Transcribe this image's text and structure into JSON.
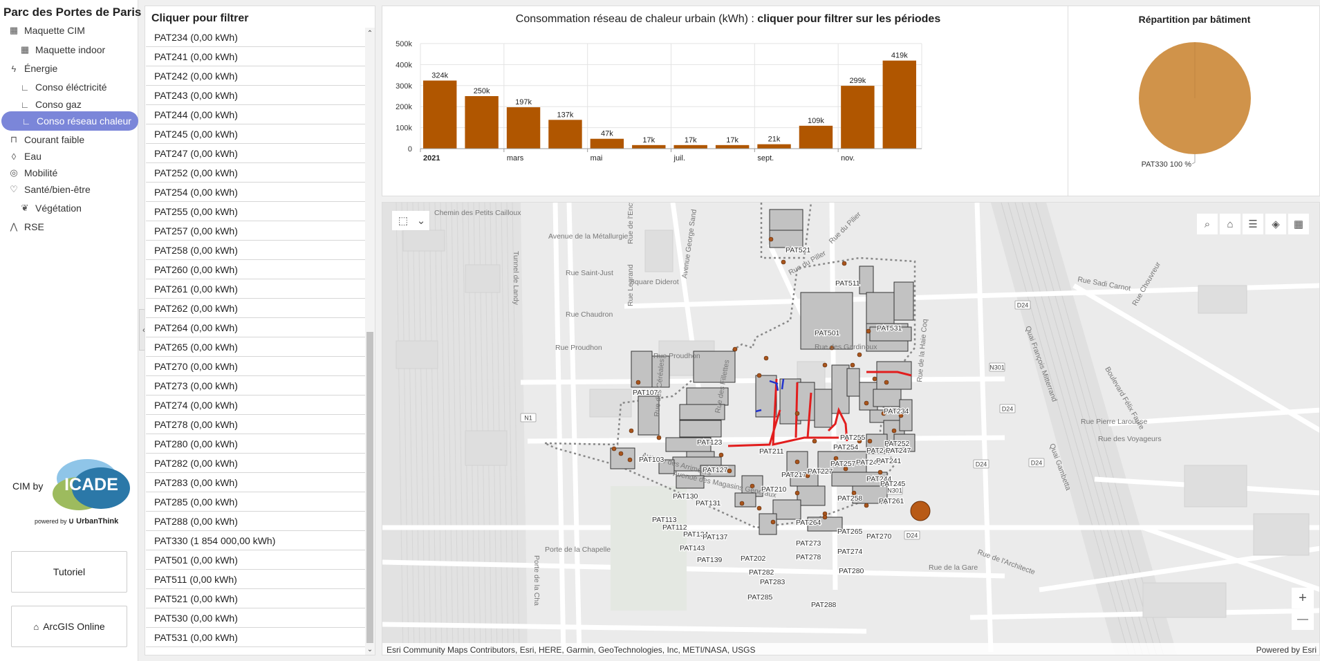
{
  "app": {
    "title": "Parc des Portes de Paris"
  },
  "nav": [
    {
      "label": "Maquette CIM",
      "icon": "building-icon",
      "glyph": "▦",
      "indent": 0
    },
    {
      "label": "Maquette indoor",
      "icon": "building-icon",
      "glyph": "▦",
      "indent": 1
    },
    {
      "label": "Énergie",
      "icon": "lightning-icon",
      "glyph": "ϟ",
      "indent": 0
    },
    {
      "label": "Conso éléctricité",
      "icon": "corner-icon",
      "glyph": "∟",
      "indent": 1
    },
    {
      "label": "Conso gaz",
      "icon": "corner-icon",
      "glyph": "∟",
      "indent": 1
    },
    {
      "label": "Conso réseau chaleur",
      "icon": "corner-icon",
      "glyph": "∟",
      "indent": 1,
      "active": true
    },
    {
      "label": "Courant faible",
      "icon": "plug-icon",
      "glyph": "⊓",
      "indent": 0
    },
    {
      "label": "Eau",
      "icon": "drop-icon",
      "glyph": "◊",
      "indent": 0
    },
    {
      "label": "Mobilité",
      "icon": "target-icon",
      "glyph": "◎",
      "indent": 0
    },
    {
      "label": "Santé/bien-être",
      "icon": "heart-pulse-icon",
      "glyph": "♡",
      "indent": 0
    },
    {
      "label": "Végétation",
      "icon": "leaf-icon",
      "glyph": "❦",
      "indent": 1
    },
    {
      "label": "RSE",
      "icon": "people-icon",
      "glyph": "⋀",
      "indent": 0
    }
  ],
  "branding": {
    "cim_by": "CIM by",
    "logo_text": "ICADE",
    "powered_by": "powered by",
    "powered_brand": "UrbanThink"
  },
  "buttons": {
    "tutorial": "Tutoriel",
    "arcgis": "ArcGIS Online",
    "home_glyph": "⌂"
  },
  "filter": {
    "title": "Cliquer pour filtrer",
    "items": [
      "PAT234 (0,00 kWh)",
      "PAT241 (0,00 kWh)",
      "PAT242 (0,00 kWh)",
      "PAT243 (0,00 kWh)",
      "PAT244 (0,00 kWh)",
      "PAT245 (0,00 kWh)",
      "PAT247 (0,00 kWh)",
      "PAT252 (0,00 kWh)",
      "PAT254 (0,00 kWh)",
      "PAT255 (0,00 kWh)",
      "PAT257 (0,00 kWh)",
      "PAT258 (0,00 kWh)",
      "PAT260 (0,00 kWh)",
      "PAT261 (0,00 kWh)",
      "PAT262 (0,00 kWh)",
      "PAT264 (0,00 kWh)",
      "PAT265 (0,00 kWh)",
      "PAT270 (0,00 kWh)",
      "PAT273 (0,00 kWh)",
      "PAT274 (0,00 kWh)",
      "PAT278 (0,00 kWh)",
      "PAT280 (0,00 kWh)",
      "PAT282 (0,00 kWh)",
      "PAT283 (0,00 kWh)",
      "PAT285 (0,00 kWh)",
      "PAT288 (0,00 kWh)",
      "PAT330 (1 854 000,00 kWh)",
      "PAT501 (0,00 kWh)",
      "PAT511 (0,00 kWh)",
      "PAT521 (0,00 kWh)",
      "PAT530 (0,00 kWh)",
      "PAT531 (0,00 kWh)"
    ]
  },
  "chart_data": [
    {
      "type": "bar",
      "title": "Consommation réseau de chaleur urbain (kWh)",
      "subtitle": "cliquer pour filtrer sur les périodes",
      "values": [
        324000,
        250000,
        197000,
        137000,
        47000,
        17000,
        17000,
        17000,
        21000,
        109000,
        299000,
        419000
      ],
      "data_labels": [
        "324k",
        "250k",
        "197k",
        "137k",
        "47k",
        "17k",
        "17k",
        "17k",
        "21k",
        "109k",
        "299k",
        "419k"
      ],
      "x_tick_labels": [
        "2021",
        "mars",
        "mai",
        "juil.",
        "sept.",
        "nov."
      ],
      "y_tick_labels": [
        "0",
        "100k",
        "200k",
        "300k",
        "400k",
        "500k"
      ],
      "ylim": [
        0,
        500000
      ],
      "color": "#b05600",
      "grid": true
    },
    {
      "type": "pie",
      "title": "Répartition par bâtiment",
      "slices": [
        {
          "name": "PAT330",
          "value": 100,
          "label": "PAT330 100 %"
        }
      ],
      "color": "#d0934a"
    }
  ],
  "map": {
    "attribution": "Esri Community Maps Contributors, Esri, HERE, Garmin, GeoTechnologies, Inc, METI/NASA, USGS",
    "powered": "Powered by Esri",
    "zoom_in": "+",
    "zoom_out": "—",
    "tools": [
      {
        "name": "search-icon",
        "glyph": "⌕"
      },
      {
        "name": "home-icon",
        "glyph": "⌂"
      },
      {
        "name": "legend-icon",
        "glyph": "☰"
      },
      {
        "name": "layers-icon",
        "glyph": "◈"
      },
      {
        "name": "basemap-gallery-icon",
        "glyph": "▦"
      }
    ],
    "select_glyph": "⬚",
    "dropdown_glyph": "⌄",
    "streets": [
      "Chemin des Petits Cailloux",
      "Avenue de la Métallurgie",
      "Rue Saint-Just",
      "Square Diderot",
      "Rue Chaudron",
      "Rue Proudhon",
      "Rue Proudhon",
      "Tunnel de Landy",
      "Avenue des Arrimeurs",
      "Avenue des Magasins Généraux",
      "Porte de la Chapelle",
      "Rue Sadi Carnot",
      "Rue Pierre Larousse",
      "Rue des Voyageurs",
      "Rue des Gardinoux",
      "Quai François Mitterrand",
      "Boulevard Félix Faure",
      "Rue de l'Architecte",
      "Rue du Piller",
      "Rue du Pilier",
      "Avenue George Sand",
      "Rue de l'Encyclopédie",
      "Rue Legrand",
      "Rue des Céréales",
      "Rue des Fillettes",
      "Rue de la Haie Coq",
      "Quai Gambetta",
      "Rue Chouvreur",
      "Porte de la Cha",
      "Rue de la Gare"
    ],
    "road_badges": [
      "N1",
      "N301",
      "D24",
      "D24",
      "D24",
      "D24",
      "N301",
      "D24"
    ],
    "buildings": [
      "PAT521",
      "PAT511",
      "PAT501",
      "PAT531",
      "PAT107",
      "PAT123",
      "PAT103",
      "PAT127",
      "PAT130",
      "PAT131",
      "PAT113",
      "PAT112",
      "PAT134",
      "PAT137",
      "PAT143",
      "PAT139",
      "PAT211",
      "PAT217",
      "PAT227",
      "PAT210",
      "PAT254",
      "PAT257",
      "PAT258",
      "PAT255",
      "PAT243",
      "PAT242",
      "PAT241",
      "PAT247",
      "PAT244",
      "PAT245",
      "PAT261",
      "PAT252",
      "PAT234",
      "PAT264",
      "PAT265",
      "PAT270",
      "PAT273",
      "PAT274",
      "PAT278",
      "PAT280",
      "PAT202",
      "PAT282",
      "PAT283",
      "PAT285",
      "PAT288"
    ]
  }
}
